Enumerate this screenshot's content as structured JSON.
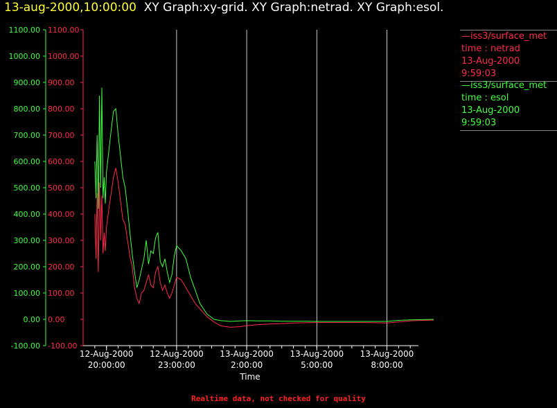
{
  "header": {
    "timestamp": "13-aug-2000,10:00:00",
    "graphs": "XY Graph:xy-grid.  XY Graph:netrad.  XY Graph:esol."
  },
  "legend": [
    {
      "lines": [
        "—iss3/surface_met",
        "time : netrad",
        "13-Aug-2000",
        "9:59:03"
      ],
      "color": "#ff2a4a"
    },
    {
      "lines": [
        "—iss3/surface_met",
        "time : esol",
        "13-Aug-2000",
        "9:59:03"
      ],
      "color": "#40ff40"
    }
  ],
  "footer": "Realtime data, not checked for quality",
  "chart_data": {
    "type": "line",
    "title": "",
    "xlabel": "Time",
    "ylabel": "",
    "ylim": [
      -100,
      1100
    ],
    "xlim_hours": [
      19.5,
      28.25
    ],
    "ytick_values": [
      -100,
      0,
      100,
      200,
      300,
      400,
      500,
      600,
      700,
      800,
      900,
      1000,
      1100
    ],
    "ytick_labels": [
      "-100.00",
      "0.00",
      "100.00",
      "200.00",
      "300.00",
      "400.00",
      "500.00",
      "600.00",
      "700.00",
      "800.00",
      "900.00",
      "1000.00",
      "1100.00"
    ],
    "xticks": [
      {
        "hour": 20,
        "date": "12-Aug-2000",
        "time": "20:00:00"
      },
      {
        "hour": 23,
        "date": "12-Aug-2000",
        "time": "23:00:00"
      },
      {
        "hour": 26,
        "date": "13-Aug-2000",
        "time": "2:00:00"
      },
      {
        "hour": 29,
        "date": "13-Aug-2000",
        "time": "5:00:00"
      },
      {
        "hour": 32,
        "date": "13-Aug-2000",
        "time": "8:00:00"
      }
    ],
    "grid": "vertical",
    "series": [
      {
        "name": "netrad",
        "color": "#ff2a4a",
        "x": [
          19.5,
          19.55,
          19.6,
          19.65,
          19.7,
          19.75,
          19.8,
          19.85,
          19.9,
          19.95,
          20.0,
          20.1,
          20.2,
          20.3,
          20.4,
          20.5,
          20.6,
          20.7,
          20.8,
          20.9,
          21.0,
          21.1,
          21.2,
          21.3,
          21.4,
          21.5,
          21.6,
          21.7,
          21.8,
          21.9,
          22.0,
          22.1,
          22.2,
          22.3,
          22.4,
          22.5,
          22.6,
          22.7,
          22.8,
          22.9,
          23.0,
          23.2,
          23.4,
          23.6,
          23.8,
          24.0,
          24.3,
          24.6,
          24.9,
          25.3,
          25.7,
          26.0,
          26.5,
          27.0,
          27.5,
          28.0,
          28.5,
          29.0,
          29.5,
          30.0,
          30.5,
          31.0,
          31.5,
          32.0,
          32.5,
          33.0,
          33.5,
          34.0
        ],
        "y": [
          400,
          230,
          480,
          180,
          520,
          300,
          470,
          250,
          330,
          260,
          350,
          420,
          480,
          540,
          575,
          520,
          450,
          380,
          360,
          300,
          240,
          200,
          120,
          80,
          60,
          100,
          110,
          140,
          170,
          130,
          120,
          180,
          200,
          140,
          110,
          130,
          100,
          80,
          100,
          130,
          160,
          150,
          120,
          90,
          60,
          40,
          10,
          -10,
          -25,
          -30,
          -28,
          -24,
          -20,
          -18,
          -16,
          -14,
          -13,
          -12,
          -12,
          -12,
          -12,
          -12,
          -13,
          -14,
          -10,
          -6,
          -4,
          -3
        ]
      },
      {
        "name": "esol",
        "color": "#40ff40",
        "x": [
          19.5,
          19.55,
          19.6,
          19.65,
          19.7,
          19.75,
          19.8,
          19.85,
          19.9,
          19.95,
          20.0,
          20.1,
          20.2,
          20.3,
          20.4,
          20.5,
          20.6,
          20.7,
          20.8,
          20.9,
          21.0,
          21.1,
          21.2,
          21.3,
          21.4,
          21.5,
          21.6,
          21.7,
          21.8,
          21.9,
          22.0,
          22.1,
          22.2,
          22.3,
          22.4,
          22.5,
          22.6,
          22.7,
          22.8,
          22.9,
          23.0,
          23.2,
          23.4,
          23.6,
          23.8,
          24.0,
          24.3,
          24.6,
          24.9,
          25.3,
          25.7,
          26.0,
          26.5,
          27.0,
          27.5,
          28.0,
          28.5,
          29.0,
          29.5,
          30.0,
          30.5,
          31.0,
          31.5,
          32.0,
          32.5,
          33.0,
          33.5,
          34.0
        ],
        "y": [
          600,
          460,
          700,
          420,
          850,
          500,
          880,
          460,
          540,
          440,
          560,
          640,
          720,
          790,
          800,
          700,
          620,
          540,
          500,
          420,
          330,
          250,
          180,
          120,
          150,
          190,
          230,
          300,
          210,
          260,
          250,
          310,
          330,
          220,
          200,
          230,
          180,
          140,
          170,
          240,
          280,
          260,
          230,
          160,
          110,
          60,
          20,
          0,
          -5,
          -8,
          -6,
          -5,
          -6,
          -6,
          -7,
          -7,
          -7,
          -8,
          -8,
          -8,
          -8,
          -8,
          -8,
          -8,
          -4,
          -2,
          -1,
          0
        ]
      }
    ]
  }
}
